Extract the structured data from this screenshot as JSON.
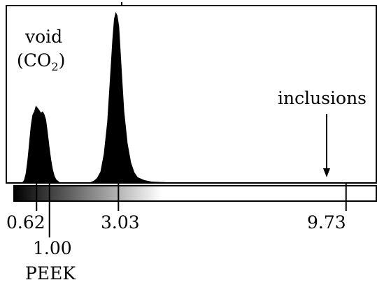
{
  "chart_data": {
    "type": "area",
    "x": [
      0.0,
      0.2,
      0.25,
      0.3,
      0.35,
      0.4,
      0.45,
      0.5,
      0.55,
      0.6,
      0.65,
      0.7,
      0.75,
      0.8,
      0.85,
      0.9,
      0.95,
      1.0,
      1.05,
      1.1,
      1.15,
      1.2,
      1.25,
      1.3,
      1.4,
      1.5,
      1.6,
      1.7,
      1.8,
      1.9,
      2.0,
      2.1,
      2.2,
      2.3,
      2.4,
      2.5,
      2.6,
      2.7,
      2.8,
      2.85,
      2.9,
      2.95,
      3.0,
      3.05,
      3.1,
      3.15,
      3.2,
      3.3,
      3.4,
      3.5,
      3.6,
      3.8,
      4.0,
      4.2,
      4.5,
      5.0,
      6.0,
      8.0,
      10.5
    ],
    "values": [
      0,
      0,
      3,
      12,
      30,
      55,
      80,
      95,
      100,
      108,
      105,
      102,
      98,
      100,
      96,
      88,
      70,
      50,
      32,
      18,
      9,
      4,
      2,
      0,
      0,
      0,
      0,
      0,
      0,
      0,
      0,
      0,
      0,
      2,
      6,
      15,
      40,
      85,
      160,
      200,
      230,
      240,
      235,
      220,
      180,
      140,
      100,
      55,
      28,
      14,
      7,
      3,
      1,
      0.5,
      0,
      0,
      0,
      0,
      0
    ],
    "xlim": [
      -0.25,
      10.6
    ],
    "ylim": [
      0,
      248
    ],
    "grid": false,
    "annotations": {
      "void_line1": "void",
      "void_line2_prefix": "(CO",
      "void_line2_sub": "2",
      "void_line2_suffix": ")",
      "inclusions": "inclusions",
      "peek": "PEEK"
    },
    "colorbar": {
      "gradient_end": 4.3,
      "ticks": [
        {
          "value": 0.62,
          "label": "0.62"
        },
        {
          "value": 1.0,
          "label": "1.00"
        },
        {
          "value": 3.03,
          "label": "3.03"
        },
        {
          "value": 9.73,
          "label": "9.73"
        }
      ]
    }
  }
}
